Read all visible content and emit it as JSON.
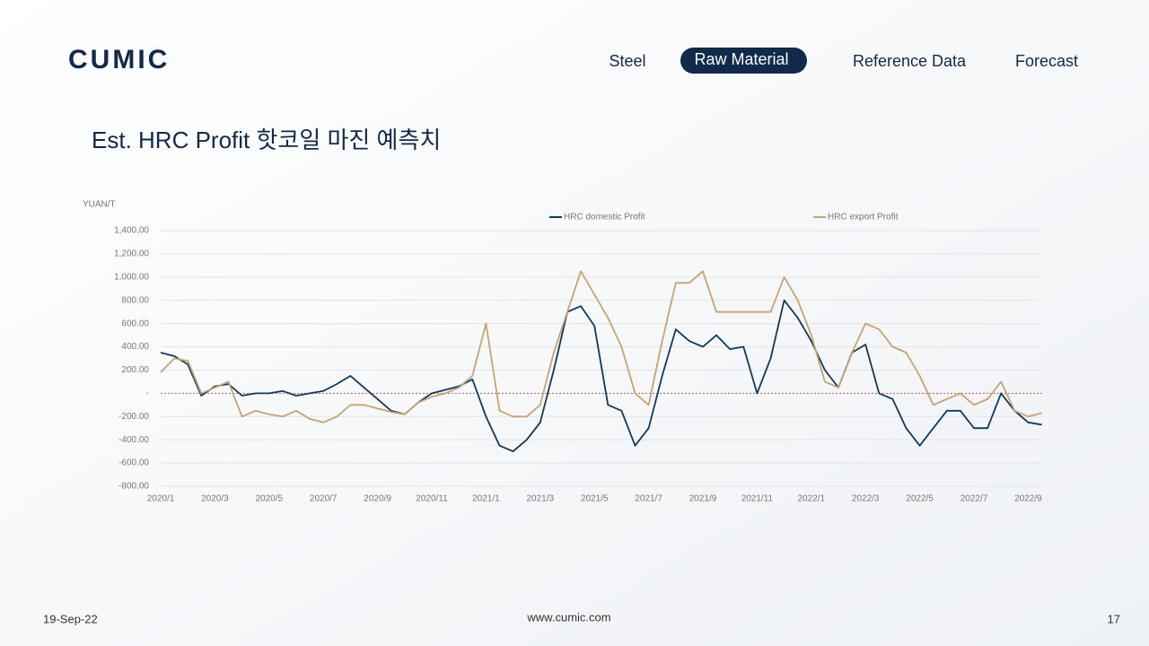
{
  "header": {
    "logo": "CUMIC",
    "nav": [
      "Steel",
      "Raw Material",
      "Reference Data",
      "Forecast"
    ],
    "active_nav": 1
  },
  "chart_data": {
    "type": "line",
    "title": "Est. HRC Profit 핫코일 마진 예측치",
    "y_label": "YUAN/T",
    "categories": [
      "2020/1",
      null,
      null,
      null,
      "2020/3",
      null,
      null,
      null,
      "2020/5",
      null,
      null,
      null,
      "2020/7",
      null,
      null,
      null,
      "2020/9",
      null,
      null,
      null,
      "2020/11",
      null,
      null,
      null,
      "2021/1",
      null,
      null,
      null,
      "2021/3",
      null,
      null,
      null,
      "2021/5",
      null,
      null,
      null,
      "2021/7",
      null,
      null,
      null,
      "2021/9",
      null,
      null,
      null,
      "2021/11",
      null,
      null,
      null,
      "2022/1",
      null,
      null,
      null,
      "2022/3",
      null,
      null,
      null,
      "2022/5",
      null,
      null,
      null,
      "2022/7",
      null,
      null,
      null,
      "2022/9",
      null
    ],
    "series": [
      {
        "name": "HRC domestic Profit",
        "color": "#0f3a5f",
        "values": [
          350,
          320,
          250,
          -20,
          60,
          80,
          -20,
          0,
          0,
          20,
          -20,
          0,
          20,
          80,
          150,
          50,
          -50,
          -150,
          -180,
          -80,
          0,
          30,
          60,
          120,
          -200,
          -450,
          -500,
          -400,
          -250,
          200,
          700,
          750,
          580,
          -100,
          -150,
          -450,
          -300,
          150,
          550,
          450,
          400,
          500,
          380,
          400,
          0,
          300,
          800,
          650,
          450,
          200,
          50,
          350,
          420,
          0,
          -50,
          -300,
          -450,
          -300,
          -150,
          -150,
          -300,
          -300,
          0,
          -150,
          -250,
          -270
        ]
      },
      {
        "name": "HRC export Profit",
        "color": "#c9a36e",
        "values": [
          180,
          300,
          280,
          0,
          50,
          100,
          -200,
          -150,
          -180,
          -200,
          -150,
          -220,
          -250,
          -200,
          -100,
          -100,
          -130,
          -160,
          -180,
          -80,
          -30,
          0,
          50,
          150,
          600,
          -150,
          -200,
          -200,
          -100,
          350,
          700,
          1050,
          850,
          650,
          400,
          0,
          -100,
          450,
          950,
          950,
          1050,
          700,
          700,
          700,
          700,
          700,
          1000,
          800,
          500,
          100,
          50,
          350,
          600,
          550,
          400,
          350,
          150,
          -100,
          -50,
          0,
          -100,
          -50,
          100,
          -150,
          -200,
          -170
        ]
      }
    ],
    "ylim": [
      -800,
      1400
    ],
    "yticks": [
      {
        "value": -800,
        "label": "-800.00"
      },
      {
        "value": -600,
        "label": "-600.00"
      },
      {
        "value": -400,
        "label": "-400.00"
      },
      {
        "value": -200,
        "label": "-200.00"
      },
      {
        "value": 0,
        "label": "-"
      },
      {
        "value": 200,
        "label": "200.00"
      },
      {
        "value": 400,
        "label": "400.00"
      },
      {
        "value": 600,
        "label": "600.00"
      },
      {
        "value": 800,
        "label": "800.00"
      },
      {
        "value": 1000,
        "label": "1,000.00"
      },
      {
        "value": 1200,
        "label": "1,200.00"
      },
      {
        "value": 1400,
        "label": "1,400.00"
      }
    ],
    "grid": true
  },
  "footer": {
    "date": "19-Sep-22",
    "website": "www.cumic.com",
    "page": "17"
  }
}
